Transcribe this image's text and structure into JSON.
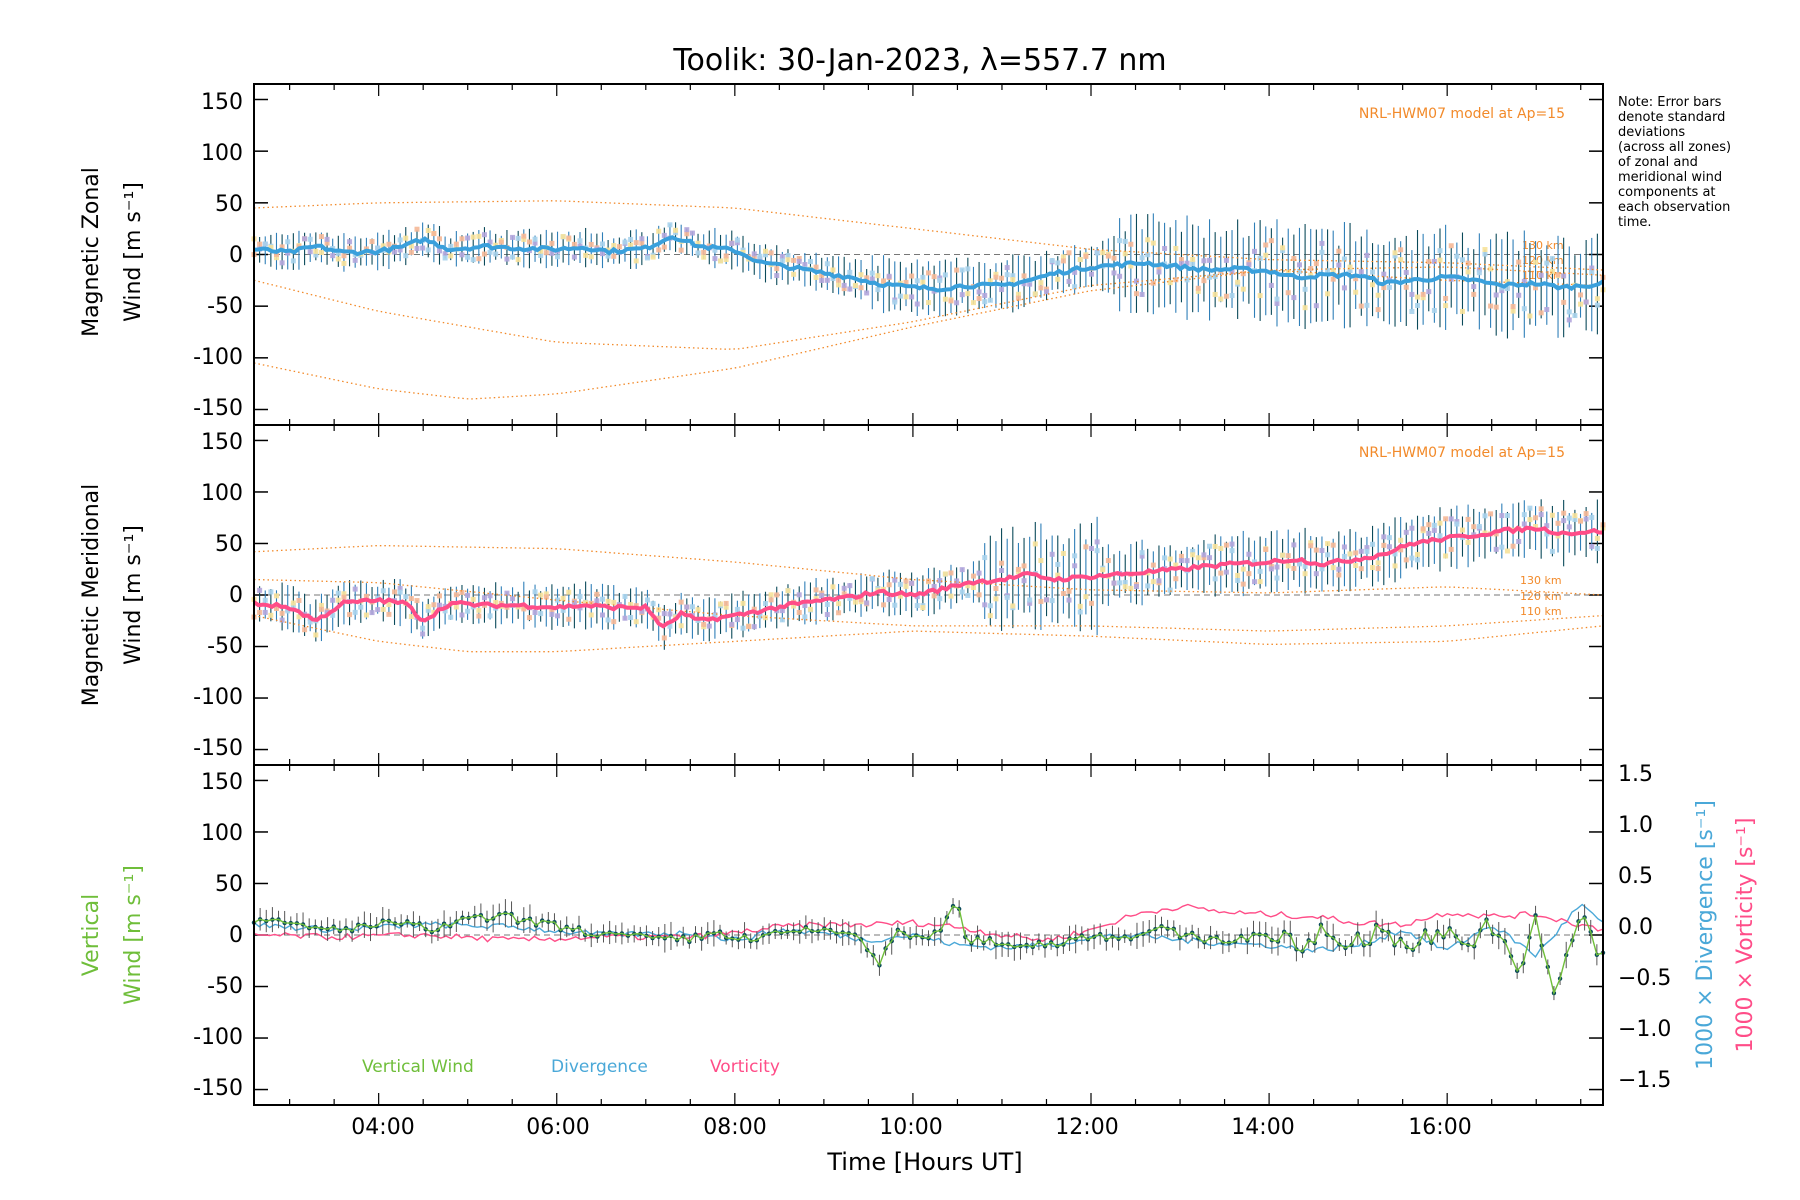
{
  "title": "Toolik: 30-Jan-2023, λ=557.7 nm",
  "note": [
    "Note: Error bars",
    "denote standard",
    "deviations",
    "(across all zones)",
    "of zonal and",
    "meridional wind",
    "components at",
    "each observation",
    "time."
  ],
  "colors": {
    "zonal": "#3aa0dc",
    "meridional": "#ff4d88",
    "vertical": "#6fbe3a",
    "divergence": "#4aa8d8",
    "vorticity": "#ff4d88",
    "model": "#f28a2a",
    "zonal_pts": "#b2a6dc",
    "errbar": "#0b4a5a"
  },
  "chart_data": [
    {
      "type": "line",
      "panel": "zonal",
      "ylabel_line1": "Magnetic Zonal",
      "ylabel_line2": "Wind [m s⁻¹]",
      "ylim": [
        -165,
        165
      ],
      "yticks": [
        150,
        100,
        50,
        0,
        -50,
        -100,
        -150
      ],
      "xlim": [
        2.6,
        17.75
      ],
      "model_label": "NRL-HWM07 model at Ap=15",
      "altitude_labels": [
        "130 km",
        "120 km",
        "110 km"
      ],
      "series": [
        {
          "name": "Zonal wind",
          "x": [
            2.6,
            3.0,
            3.3,
            3.6,
            4.0,
            4.3,
            4.5,
            4.8,
            5.2,
            5.6,
            6.0,
            6.3,
            6.6,
            7.0,
            7.3,
            7.6,
            8.0,
            8.3,
            8.6,
            9.0,
            9.3,
            9.6,
            10.0,
            10.3,
            10.6,
            11.0,
            11.3,
            11.6,
            12.0,
            12.3,
            12.6,
            13.0,
            13.3,
            13.6,
            14.0,
            14.3,
            14.6,
            15.0,
            15.3,
            15.6,
            16.0,
            16.3,
            16.6,
            17.0,
            17.3,
            17.75
          ],
          "y": [
            5,
            2,
            8,
            2,
            3,
            8,
            15,
            5,
            8,
            6,
            5,
            7,
            3,
            6,
            18,
            8,
            4,
            -8,
            -12,
            -18,
            -22,
            -28,
            -32,
            -33,
            -30,
            -30,
            -25,
            -18,
            -12,
            -10,
            -8,
            -12,
            -15,
            -14,
            -16,
            -22,
            -20,
            -20,
            -28,
            -25,
            -22,
            -25,
            -30,
            -28,
            -32,
            -28
          ]
        },
        {
          "name": "Model 130 km",
          "x": [
            2.6,
            4,
            6,
            8,
            10,
            12,
            14,
            16,
            17.75
          ],
          "y": [
            45,
            50,
            52,
            45,
            25,
            5,
            -5,
            -8,
            -15
          ]
        },
        {
          "name": "Model 120 km",
          "x": [
            2.6,
            4,
            6,
            8,
            10,
            12,
            14,
            16,
            17.75
          ],
          "y": [
            -25,
            -55,
            -85,
            -92,
            -65,
            -30,
            -15,
            -12,
            -20
          ]
        },
        {
          "name": "Model 110 km",
          "x": [
            2.6,
            4,
            5,
            6,
            8,
            10,
            12,
            14,
            16,
            17.75
          ],
          "y": [
            -105,
            -130,
            -140,
            -135,
            -110,
            -70,
            -35,
            -15,
            -25,
            -30
          ]
        }
      ]
    },
    {
      "type": "line",
      "panel": "meridional",
      "ylabel_line1": "Magnetic Meridional",
      "ylabel_line2": "Wind [m s⁻¹]",
      "ylim": [
        -165,
        165
      ],
      "yticks": [
        150,
        100,
        50,
        0,
        -50,
        -100,
        -150
      ],
      "xlim": [
        2.6,
        17.75
      ],
      "model_label": "NRL-HWM07 model at Ap=15",
      "altitude_labels": [
        "130 km",
        "120 km",
        "110 km"
      ],
      "series": [
        {
          "name": "Meridional wind",
          "x": [
            2.6,
            3.0,
            3.3,
            3.6,
            4.0,
            4.3,
            4.5,
            4.8,
            5.2,
            5.6,
            6.0,
            6.3,
            6.6,
            7.0,
            7.2,
            7.4,
            7.6,
            8.0,
            8.3,
            8.6,
            9.0,
            9.3,
            9.6,
            10.0,
            10.3,
            10.6,
            11.0,
            11.3,
            11.6,
            12.0,
            12.3,
            12.6,
            13.0,
            13.3,
            13.6,
            14.0,
            14.3,
            14.6,
            15.0,
            15.3,
            15.6,
            16.0,
            16.3,
            16.6,
            17.0,
            17.3,
            17.75
          ],
          "y": [
            -8,
            -12,
            -25,
            -8,
            -5,
            -8,
            -25,
            -8,
            -10,
            -10,
            -12,
            -10,
            -12,
            -12,
            -32,
            -18,
            -25,
            -20,
            -15,
            -10,
            -5,
            -2,
            3,
            0,
            5,
            12,
            15,
            20,
            15,
            18,
            20,
            22,
            25,
            28,
            30,
            32,
            35,
            30,
            35,
            40,
            50,
            55,
            58,
            62,
            65,
            60,
            62
          ]
        },
        {
          "name": "Model 130 km",
          "x": [
            2.6,
            4,
            6,
            8,
            10,
            12,
            14,
            16,
            17.75
          ],
          "y": [
            42,
            48,
            45,
            32,
            15,
            5,
            2,
            8,
            0
          ]
        },
        {
          "name": "Model 120 km",
          "x": [
            2.6,
            4,
            6,
            8,
            10,
            12,
            14,
            16,
            17.75
          ],
          "y": [
            15,
            12,
            -5,
            -20,
            -30,
            -30,
            -35,
            -30,
            -20
          ]
        },
        {
          "name": "Model 110 km",
          "x": [
            2.6,
            4,
            5,
            6,
            8,
            10,
            12,
            14,
            16,
            17.75
          ],
          "y": [
            -20,
            -45,
            -55,
            -55,
            -45,
            -35,
            -40,
            -48,
            -45,
            -30
          ]
        }
      ]
    },
    {
      "type": "line",
      "panel": "vertical",
      "ylabel_line1": "Vertical",
      "ylabel_line2": "Wind [m s⁻¹]",
      "right_label_div": "1000 × Divergence [s⁻¹]",
      "right_label_vor": "1000 × Vorticity [s⁻¹]",
      "ylim": [
        -165,
        165
      ],
      "yticks": [
        150,
        100,
        50,
        0,
        -50,
        -100,
        -150
      ],
      "right_ylim": [
        -1.65,
        1.65
      ],
      "right_yticks": [
        "1.5",
        "1.0",
        "0.5",
        "0.0",
        "−0.5",
        "−1.0",
        "−1.5"
      ],
      "xlim": [
        2.6,
        17.75
      ],
      "xticks": [
        "04:00",
        "06:00",
        "08:00",
        "10:00",
        "12:00",
        "14:00",
        "16:00"
      ],
      "xtick_values": [
        4,
        6,
        8,
        10,
        12,
        14,
        16
      ],
      "xlabel": "Time [Hours UT]",
      "legend": [
        "Vertical Wind",
        "Divergence",
        "Vorticity"
      ],
      "series": [
        {
          "name": "Vertical Wind",
          "x": [
            2.6,
            3.0,
            3.4,
            3.8,
            4.2,
            4.6,
            5.0,
            5.4,
            5.8,
            6.2,
            6.6,
            7.0,
            7.4,
            7.8,
            8.2,
            8.6,
            9.0,
            9.4,
            9.6,
            9.8,
            10.2,
            10.5,
            10.6,
            10.8,
            11.2,
            11.6,
            12.0,
            12.4,
            12.8,
            13.2,
            13.6,
            14.0,
            14.4,
            14.6,
            14.8,
            15.2,
            15.6,
            16.0,
            16.2,
            16.4,
            16.6,
            16.8,
            17.0,
            17.2,
            17.5,
            17.75
          ],
          "y": [
            15,
            10,
            5,
            8,
            12,
            5,
            15,
            18,
            12,
            5,
            0,
            -3,
            -5,
            2,
            -5,
            3,
            5,
            0,
            -30,
            2,
            -5,
            30,
            -5,
            -5,
            -10,
            -8,
            0,
            -2,
            5,
            -3,
            -5,
            2,
            -15,
            8,
            -10,
            2,
            -8,
            5,
            -15,
            10,
            -5,
            -40,
            15,
            -55,
            20,
            -25
          ]
        },
        {
          "name": "Divergence",
          "x": [
            2.6,
            3.5,
            4.5,
            5.5,
            6.5,
            7.5,
            8.0,
            8.5,
            9.0,
            9.5,
            10.0,
            10.5,
            11.0,
            11.5,
            12.0,
            12.5,
            13.0,
            13.5,
            14.0,
            14.5,
            15.0,
            15.5,
            16.0,
            16.5,
            17.0,
            17.5,
            17.75
          ],
          "y": [
            0.1,
            0.05,
            0.1,
            0.08,
            0.0,
            0.02,
            -0.05,
            0.05,
            0.02,
            -0.05,
            0.0,
            -0.1,
            -0.12,
            -0.1,
            -0.02,
            0.0,
            -0.05,
            -0.08,
            -0.1,
            -0.15,
            -0.1,
            0.05,
            -0.15,
            0.1,
            -0.2,
            0.3,
            0.1
          ]
        },
        {
          "name": "Vorticity",
          "x": [
            2.6,
            3.5,
            4.5,
            5.5,
            6.5,
            7.5,
            8.0,
            8.5,
            9.0,
            9.5,
            10.0,
            10.5,
            11.0,
            11.5,
            12.0,
            12.5,
            13.0,
            13.5,
            14.0,
            14.5,
            15.0,
            15.5,
            16.0,
            16.5,
            17.0,
            17.5,
            17.75
          ],
          "y": [
            0.0,
            -0.02,
            0.0,
            -0.05,
            -0.02,
            -0.02,
            0.02,
            0.08,
            0.1,
            0.1,
            0.12,
            0.08,
            0.0,
            -0.05,
            0.05,
            0.2,
            0.28,
            0.22,
            0.2,
            0.18,
            0.12,
            0.1,
            0.22,
            0.18,
            0.2,
            0.1,
            0.05
          ]
        }
      ]
    }
  ]
}
